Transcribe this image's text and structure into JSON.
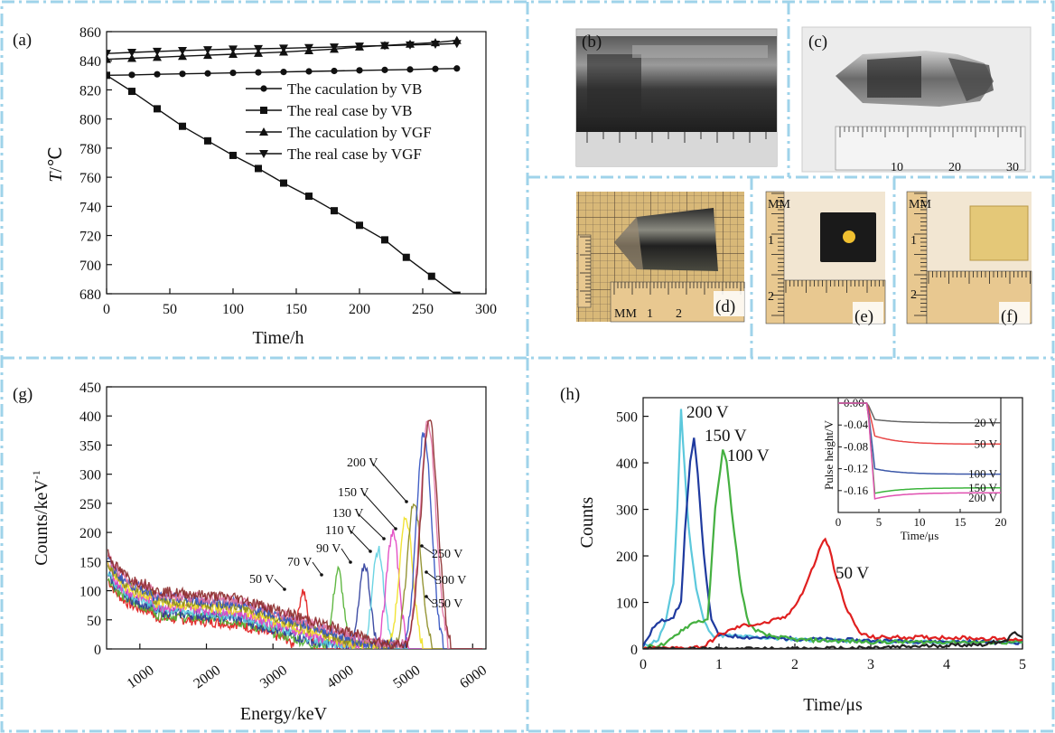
{
  "panels": {
    "a": "(a)",
    "b": "(b)",
    "c": "(c)",
    "d": "(d)",
    "e": "(e)",
    "f": "(f)",
    "g": "(g)",
    "h": "(h)"
  },
  "frame_color": "#9fd3ea",
  "photos": {
    "c_ruler_labels": [
      "10",
      "20",
      "30"
    ],
    "d_ruler_labels": [
      "MM",
      "1",
      "2"
    ],
    "e_ruler_labels": [
      "MM",
      "1",
      "2"
    ],
    "f_ruler_labels": [
      "MM",
      "1",
      "2"
    ]
  },
  "chart_data": [
    {
      "id": "a",
      "type": "line",
      "xlabel": "Time/h",
      "ylabel_italic": "T",
      "ylabel_rest": "/℃",
      "xlim": [
        0,
        300
      ],
      "ylim": [
        680,
        860
      ],
      "xticks": [
        0,
        50,
        100,
        150,
        200,
        250,
        300
      ],
      "yticks": [
        680,
        700,
        720,
        740,
        760,
        780,
        800,
        820,
        840,
        860
      ],
      "legend_position": "top-right",
      "series": [
        {
          "name": "The caculation by VB",
          "marker": "circle",
          "x": [
            0,
            20,
            40,
            60,
            80,
            100,
            120,
            140,
            160,
            180,
            200,
            220,
            240,
            260,
            277
          ],
          "y": [
            830,
            830.3,
            830.7,
            831,
            831.3,
            831.7,
            832,
            832.3,
            832.7,
            833,
            833.4,
            833.7,
            834,
            834.4,
            834.7
          ]
        },
        {
          "name": "The real case by VB",
          "marker": "square",
          "x": [
            0,
            20,
            40,
            60,
            80,
            100,
            120,
            140,
            160,
            180,
            200,
            220,
            237,
            257,
            277
          ],
          "y": [
            830,
            819,
            807,
            795,
            785,
            775,
            766,
            756,
            747,
            737,
            727,
            717,
            705,
            692,
            679
          ]
        },
        {
          "name": "The caculation by VGF",
          "marker": "triangle-up",
          "x": [
            0,
            20,
            40,
            60,
            80,
            100,
            120,
            140,
            160,
            180,
            200,
            220,
            240,
            260,
            277
          ],
          "y": [
            841,
            841.7,
            842.4,
            843.1,
            843.8,
            844.5,
            845.2,
            846,
            847,
            848,
            849.5,
            850.5,
            851.5,
            852.5,
            854
          ]
        },
        {
          "name": "The real case by VGF",
          "marker": "triangle-down",
          "x": [
            0,
            20,
            40,
            60,
            80,
            100,
            120,
            140,
            160,
            180,
            200,
            220,
            240,
            260,
            277
          ],
          "y": [
            845,
            845.7,
            846.4,
            847,
            847.5,
            848,
            848.3,
            848.6,
            849,
            849.4,
            850,
            850.4,
            850.8,
            851.3,
            851.8
          ]
        }
      ]
    },
    {
      "id": "g",
      "type": "line",
      "xlabel": "Energy/keV",
      "ylabel": "Counts/keV",
      "ylabel_sup": "-1",
      "xlim": [
        500,
        6200
      ],
      "ylim": [
        0,
        450
      ],
      "xticks": [
        1000,
        2000,
        3000,
        4000,
        5000,
        6000
      ],
      "yticks": [
        0,
        50,
        100,
        150,
        200,
        250,
        300,
        350,
        400,
        450
      ],
      "series": [
        {
          "name": "50 V",
          "color": "#e01818",
          "peak_x": 3450,
          "peak_y": 100
        },
        {
          "name": "70 V",
          "color": "#50b030",
          "peak_x": 3980,
          "peak_y": 135
        },
        {
          "name": "90 V",
          "color": "#2a3a9a",
          "peak_x": 4380,
          "peak_y": 145
        },
        {
          "name": "110 V",
          "color": "#5ccfe0",
          "peak_x": 4580,
          "peak_y": 170
        },
        {
          "name": "130 V",
          "color": "#e040c0",
          "peak_x": 4800,
          "peak_y": 200
        },
        {
          "name": "150 V",
          "color": "#f0e020",
          "peak_x": 5000,
          "peak_y": 225
        },
        {
          "name": "200 V",
          "color": "#8a8a20",
          "peak_x": 5120,
          "peak_y": 250
        },
        {
          "name": "250 V",
          "color": "#3050c0",
          "peak_x": 5270,
          "peak_y": 370
        },
        {
          "name": "300 V",
          "color": "#e070a0",
          "peak_x": 5330,
          "peak_y": 390
        },
        {
          "name": "350 V",
          "color": "#8b2a2a",
          "peak_x": 5350,
          "peak_y": 395
        }
      ],
      "annotations": [
        "50 V",
        "70 V",
        "90 V",
        "110 V",
        "130 V",
        "150 V",
        "200 V",
        "250 V",
        "300 V",
        "350 V"
      ]
    },
    {
      "id": "h",
      "type": "line",
      "xlabel": "Time/μs",
      "ylabel": "Counts",
      "xlim": [
        0,
        5
      ],
      "ylim": [
        0,
        540
      ],
      "xticks": [
        0,
        1,
        2,
        3,
        4,
        5
      ],
      "yticks": [
        0,
        100,
        200,
        300,
        400,
        500
      ],
      "series": [
        {
          "name": "200 V",
          "color": "#5cc8dc",
          "x": [
            0,
            0.2,
            0.3,
            0.4,
            0.45,
            0.5,
            0.55,
            0.6,
            0.7,
            0.8,
            0.9,
            1.2,
            1.8,
            2.5,
            3.5,
            5
          ],
          "y": [
            5,
            20,
            60,
            140,
            300,
            515,
            380,
            260,
            130,
            60,
            30,
            28,
            22,
            18,
            15,
            15
          ]
        },
        {
          "name": "150 V",
          "color": "#1f3a9f",
          "x": [
            0,
            0.15,
            0.25,
            0.4,
            0.5,
            0.55,
            0.62,
            0.67,
            0.72,
            0.8,
            0.9,
            1.0,
            1.4,
            2.0,
            3.0,
            4.0,
            5.0
          ],
          "y": [
            5,
            50,
            60,
            70,
            100,
            250,
            400,
            450,
            380,
            200,
            60,
            30,
            25,
            22,
            18,
            16,
            14
          ]
        },
        {
          "name": "100 V",
          "color": "#44b040",
          "x": [
            0,
            0.3,
            0.5,
            0.7,
            0.85,
            0.95,
            1.05,
            1.1,
            1.2,
            1.3,
            1.4,
            1.6,
            2.0,
            3.0,
            4.0,
            5.0
          ],
          "y": [
            3,
            10,
            40,
            60,
            60,
            300,
            430,
            400,
            250,
            120,
            50,
            30,
            20,
            15,
            15,
            14
          ]
        },
        {
          "name": "50 V",
          "color": "#e02020",
          "x": [
            0,
            0.5,
            0.8,
            1.0,
            1.3,
            1.6,
            1.9,
            2.1,
            2.25,
            2.35,
            2.4,
            2.45,
            2.55,
            2.7,
            2.85,
            3.0,
            3.5,
            4.0,
            5.0
          ],
          "y": [
            0,
            2,
            5,
            30,
            50,
            55,
            70,
            120,
            180,
            225,
            235,
            220,
            150,
            80,
            35,
            25,
            25,
            25,
            20
          ]
        },
        {
          "name": "20 V",
          "color": "#222222",
          "x": [
            0,
            1,
            2,
            3,
            3.5,
            4,
            4.5,
            4.8,
            4.9,
            5.0
          ],
          "y": [
            0,
            0,
            0,
            2,
            5,
            8,
            10,
            20,
            35,
            25
          ]
        }
      ],
      "annotations": [
        "200 V",
        "150 V",
        "100 V",
        "50 V"
      ],
      "inset": {
        "xlabel": "Time/μs",
        "ylabel": "Pulse height/V",
        "xlim": [
          0,
          20
        ],
        "ylim": [
          -0.2,
          0.01
        ],
        "xticks": [
          0,
          5,
          10,
          15,
          20
        ],
        "yticks": [
          "0.00",
          "-0.04",
          "-0.08",
          "-0.12",
          "-0.16"
        ],
        "series": [
          {
            "name": "20 V",
            "color": "#666666",
            "final": -0.036,
            "drop": -0.03
          },
          {
            "name": "50 V",
            "color": "#e84848",
            "final": -0.075,
            "drop": -0.06
          },
          {
            "name": "100 V",
            "color": "#3c58a8",
            "final": -0.13,
            "drop": -0.12
          },
          {
            "name": "150 V",
            "color": "#3cb43c",
            "final": -0.155,
            "drop": -0.165
          },
          {
            "name": "200 V",
            "color": "#e050b0",
            "final": -0.164,
            "drop": -0.175
          }
        ]
      }
    }
  ]
}
